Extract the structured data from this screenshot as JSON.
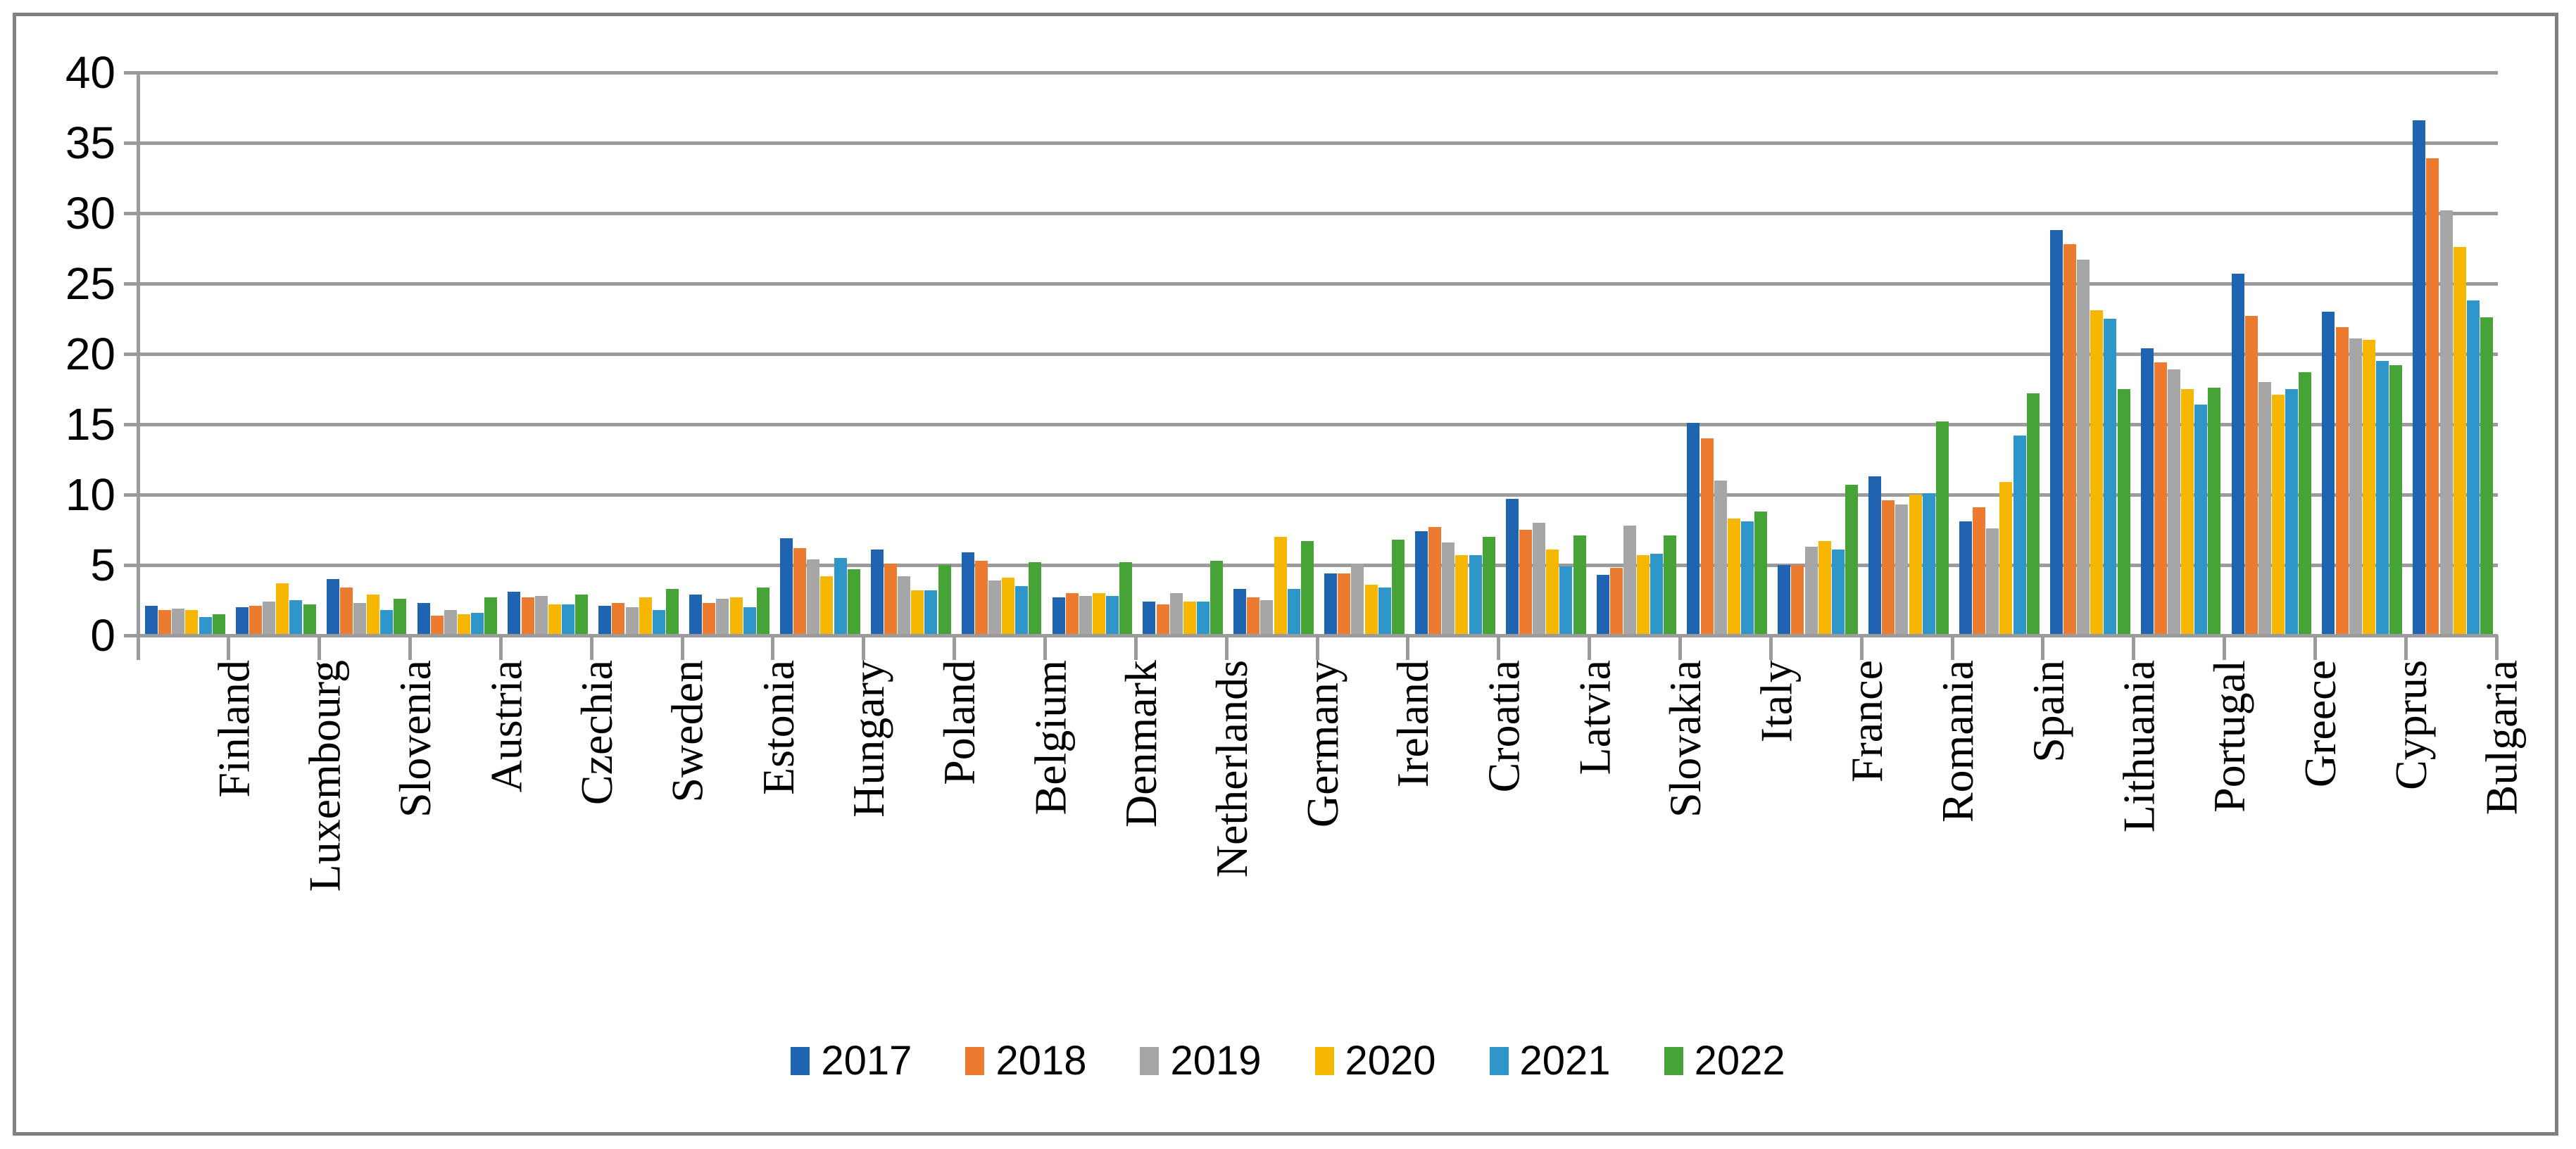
{
  "figure": {
    "background": "#FFFFFF",
    "border_color": "#808080",
    "gridline_color": "#9B9B9B",
    "text_color": "#000000"
  },
  "chart_data": {
    "type": "bar",
    "title": "",
    "xlabel": "",
    "ylabel": "",
    "ylim": [
      0,
      40
    ],
    "ytick_step": 5,
    "ytick_labels": [
      "0",
      "5",
      "10",
      "15",
      "20",
      "25",
      "30",
      "35",
      "40"
    ],
    "grid": true,
    "legend_position": "bottom",
    "categories": [
      "Finland",
      "Luxembourg",
      "Slovenia",
      "Austria",
      "Czechia",
      "Sweden",
      "Estonia",
      "Hungary",
      "Poland",
      "Belgium",
      "Denmark",
      "Netherlands",
      "Germany",
      "Ireland",
      "Croatia",
      "Latvia",
      "Slovakia",
      "Italy",
      "France",
      "Romania",
      "Spain",
      "Lithuania",
      "Portugal",
      "Greece",
      "Cyprus",
      "Bulgaria"
    ],
    "series": [
      {
        "name": "2017",
        "color": "#1F64B0",
        "values": [
          2.0,
          1.9,
          3.9,
          2.2,
          3.0,
          2.0,
          2.8,
          6.8,
          6.0,
          5.8,
          2.6,
          2.3,
          3.2,
          4.3,
          7.3,
          9.6,
          4.2,
          15.0,
          4.9,
          11.2,
          8.0,
          28.7,
          20.3,
          25.6,
          22.9,
          36.5
        ]
      },
      {
        "name": "2018",
        "color": "#EC7B2F",
        "values": [
          1.7,
          2.0,
          3.3,
          1.3,
          2.6,
          2.2,
          2.2,
          6.1,
          5.0,
          5.2,
          2.9,
          2.1,
          2.6,
          4.3,
          7.6,
          7.4,
          4.7,
          13.9,
          4.9,
          9.5,
          9.0,
          27.7,
          19.3,
          22.6,
          21.8,
          33.8
        ]
      },
      {
        "name": "2019",
        "color": "#A6A6A6",
        "values": [
          1.8,
          2.3,
          2.2,
          1.7,
          2.7,
          1.9,
          2.5,
          5.3,
          4.1,
          3.8,
          2.7,
          2.9,
          2.4,
          5.0,
          6.5,
          7.9,
          7.7,
          10.9,
          6.2,
          9.2,
          7.5,
          26.6,
          18.8,
          17.9,
          21.0,
          30.1
        ]
      },
      {
        "name": "2020",
        "color": "#F7B600",
        "values": [
          1.7,
          3.6,
          2.8,
          1.4,
          2.1,
          2.6,
          2.6,
          4.1,
          3.1,
          4.0,
          2.9,
          2.3,
          6.9,
          3.5,
          5.6,
          6.0,
          5.6,
          8.2,
          6.6,
          9.9,
          10.8,
          23.0,
          17.4,
          17.0,
          20.9,
          27.5
        ]
      },
      {
        "name": "2021",
        "color": "#2E96C9",
        "values": [
          1.2,
          2.4,
          1.7,
          1.5,
          2.1,
          1.7,
          1.9,
          5.4,
          3.1,
          3.4,
          2.7,
          2.3,
          3.2,
          3.3,
          5.6,
          4.8,
          5.7,
          8.0,
          6.0,
          10.0,
          14.1,
          22.4,
          16.3,
          17.4,
          19.4,
          23.7
        ]
      },
      {
        "name": "2022",
        "color": "#46A335",
        "values": [
          1.4,
          2.1,
          2.5,
          2.6,
          2.8,
          3.2,
          3.3,
          4.6,
          4.9,
          5.1,
          5.1,
          5.2,
          6.6,
          6.7,
          6.9,
          7.0,
          7.0,
          8.7,
          10.6,
          15.1,
          17.1,
          17.4,
          17.5,
          18.6,
          19.1,
          22.5
        ]
      }
    ]
  }
}
